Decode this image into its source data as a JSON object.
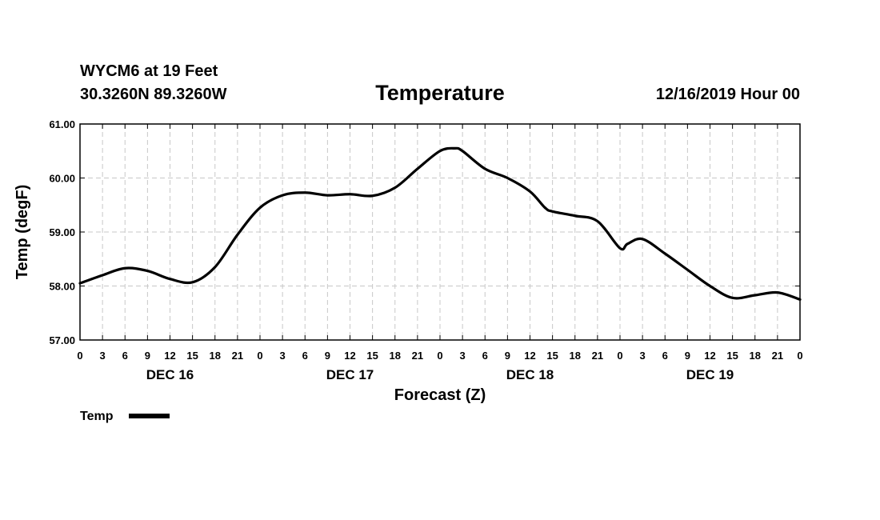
{
  "header": {
    "station": "WYCM6 at 19 Feet",
    "coords": "30.3260N 89.3260W",
    "title": "Temperature",
    "datetime": "12/16/2019 Hour 00"
  },
  "chart_data": {
    "type": "line",
    "title": "Temperature",
    "xlabel": "Forecast (Z)",
    "ylabel": "Temp (degF)",
    "ylim": [
      57.0,
      61.0
    ],
    "yticks": [
      "61.00",
      "60.00",
      "59.00",
      "58.00",
      "57.00"
    ],
    "xlim": [
      0,
      96
    ],
    "x_tick_labels": [
      "0",
      "3",
      "6",
      "9",
      "12",
      "15",
      "18",
      "21",
      "0",
      "3",
      "6",
      "9",
      "12",
      "15",
      "18",
      "21",
      "0",
      "3",
      "6",
      "9",
      "12",
      "15",
      "18",
      "21",
      "0",
      "3",
      "6",
      "9",
      "12",
      "15",
      "18",
      "21",
      "0"
    ],
    "day_labels": [
      {
        "label": "DEC 16",
        "hour": 12
      },
      {
        "label": "DEC 17",
        "hour": 36
      },
      {
        "label": "DEC 18",
        "hour": 60
      },
      {
        "label": "DEC 19",
        "hour": 84
      }
    ],
    "grid": true,
    "legend": {
      "position": "bottom-left",
      "label": "Temp"
    },
    "series": [
      {
        "name": "Temp",
        "color": "#000000",
        "x": [
          0,
          3,
          6,
          9,
          12,
          15,
          18,
          21,
          24,
          27,
          30,
          33,
          36,
          39,
          42,
          45,
          48,
          50,
          51,
          54,
          57,
          60,
          62,
          63,
          66,
          69,
          72,
          73,
          75,
          78,
          81,
          84,
          87,
          90,
          93,
          96
        ],
        "y": [
          58.05,
          58.2,
          58.33,
          58.28,
          58.13,
          58.07,
          58.35,
          58.95,
          59.45,
          59.68,
          59.73,
          59.68,
          59.7,
          59.67,
          59.82,
          60.17,
          60.5,
          60.55,
          60.5,
          60.17,
          60.0,
          59.75,
          59.45,
          59.38,
          59.3,
          59.2,
          58.7,
          58.78,
          58.87,
          58.6,
          58.3,
          58.0,
          57.78,
          57.83,
          57.88,
          57.75
        ]
      }
    ]
  }
}
